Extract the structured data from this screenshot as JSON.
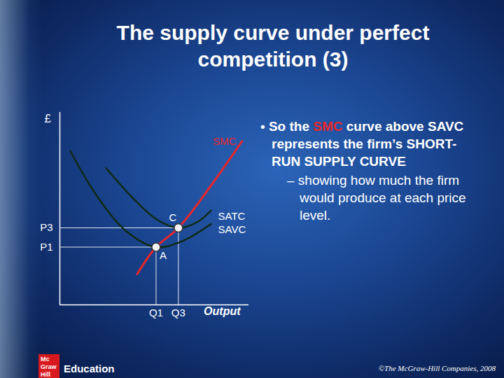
{
  "chart_data": {
    "type": "line",
    "title": "The supply curve under perfect competition (3)",
    "xlabel": "Output",
    "ylabel": "£",
    "xlim": [
      0,
      11
    ],
    "ylim": [
      0,
      10
    ],
    "xticks": [
      {
        "value": 5.6,
        "label": "Q1"
      },
      {
        "value": 6.9,
        "label": "Q3"
      }
    ],
    "yticks": [
      {
        "value": 3.0,
        "label": "P1"
      },
      {
        "value": 4.0,
        "label": "P3"
      }
    ],
    "series": [
      {
        "name": "SMC",
        "color": "#e8262a",
        "x": [
          4.5,
          5.6,
          6.9,
          8.8,
          10.6
        ],
        "values": [
          1.6,
          3.0,
          4.0,
          6.2,
          8.5
        ]
      },
      {
        "name": "SATC",
        "color": "#0f2a14",
        "x": [
          2.7,
          4.3,
          5.7,
          6.9,
          8.0,
          8.8
        ],
        "values": [
          7.1,
          5.5,
          4.4,
          4.0,
          4.3,
          4.9
        ]
      },
      {
        "name": "SAVC",
        "color": "#0f2a14",
        "x": [
          0.6,
          2.2,
          3.9,
          5.6,
          7.1,
          8.8
        ],
        "values": [
          8.0,
          5.6,
          3.8,
          3.0,
          3.3,
          4.2
        ]
      }
    ],
    "points": [
      {
        "label": "A",
        "x": 5.6,
        "y": 3.0
      },
      {
        "label": "C",
        "x": 6.9,
        "y": 4.0
      }
    ],
    "annotations": [
      "• So the SMC curve above SAVC represents the firm’s SHORT-RUN SUPPLY CURVE",
      "– showing how much the firm would produce at each price level."
    ]
  },
  "slide": {
    "logo": [
      "Mc",
      "Graw",
      "Hill"
    ],
    "brand": "Education",
    "copyright": "©The McGraw-Hill Companies, 2008"
  }
}
